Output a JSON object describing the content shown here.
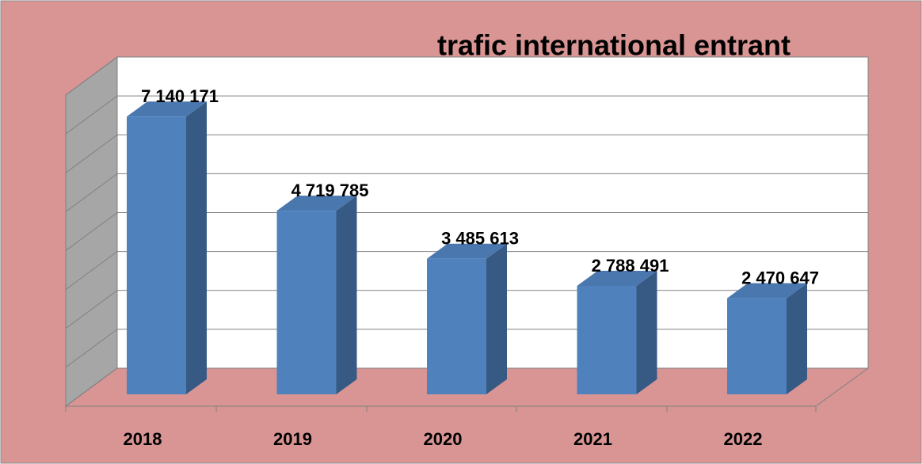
{
  "chart_data": {
    "type": "bar3d",
    "title": "trafic international entrant",
    "categories": [
      "2018",
      "2019",
      "2020",
      "2021",
      "2022"
    ],
    "values": [
      7140171,
      4719785,
      3485613,
      2788491,
      2470647
    ],
    "value_labels": [
      "7 140 171",
      "4 719 785",
      "3 485 613",
      "2 788 491",
      "2 470 647"
    ],
    "color": "#4f81bd",
    "ylim": [
      0,
      8000000
    ],
    "yticks": [
      0,
      1000000,
      2000000,
      3000000,
      4000000,
      5000000,
      6000000,
      7000000,
      8000000
    ],
    "grid": true
  }
}
